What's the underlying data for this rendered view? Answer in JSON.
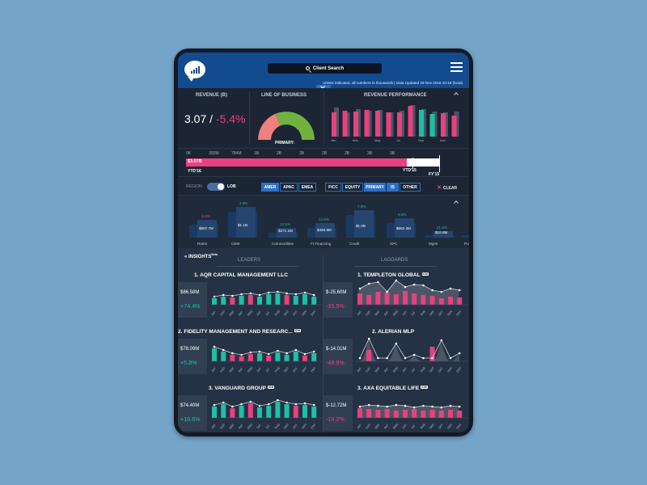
{
  "header": {
    "search_label": "Client Search",
    "note": "Unless indicated, all numbers in thousands | Data Updated 29 Nov 2016 10:18 (local)"
  },
  "kpi": {
    "revenue_title": "REVENUE (B)",
    "revenue_value": "3.07",
    "revenue_sep": " / ",
    "revenue_change": "-5.4%",
    "lob_title": "LINE OF BUSINESS",
    "primary_label": "PRIMARY:",
    "perf_title": "REVENUE PERFORMANCE",
    "perf_months": [
      "Jan",
      "Mar",
      "May",
      "Jul",
      "Sep",
      "Nov"
    ]
  },
  "timeline": {
    "ticks": [
      "0K",
      "392M",
      "784M",
      "1B",
      "2B",
      "2B",
      "2B",
      "2B",
      "3B",
      "3B"
    ],
    "value": "$3.07B",
    "ytd": "YTD'16",
    "ytd15": "YTD'15",
    "fy15": "FY'15",
    "progress": 0.87
  },
  "filters": {
    "region_label": "REGION",
    "lob_label": "LOB",
    "regions": [
      "AMER",
      "APAC",
      "EMEA"
    ],
    "lobs": [
      "FICC",
      "EQUITY",
      "PRIMARY",
      "IS",
      "OTHER"
    ],
    "clear_label": "CLEAR"
  },
  "lob_bars": [
    {
      "name": "Rates",
      "value": "$597.7M",
      "change": "-5.9%"
    },
    {
      "name": "CEM",
      "value": "$1.1B",
      "change": "2.6%"
    },
    {
      "name": "Commodities",
      "value": "$271.1M",
      "change": "12.5%"
    },
    {
      "name": "FI Financing",
      "value": "$460.6M",
      "change": "24.6%"
    },
    {
      "name": "Credit",
      "value": "$1.0B",
      "change": "7.6%"
    },
    {
      "name": "SPC",
      "value": "$662.4M",
      "change": "9.6%"
    },
    {
      "name": "Mgmt",
      "value": "$18.8M",
      "change": "21.8%"
    },
    {
      "name": "Pul",
      "value": "",
      "change": ""
    }
  ],
  "insights": {
    "title": "INSIGHTS",
    "beta": "Beta",
    "leaders_label": "LEADERS",
    "laggards_label": "LAGGARDS",
    "months": [
      "Jan",
      "Feb",
      "Mar",
      "Apr",
      "May",
      "Jun",
      "Jul",
      "Aug",
      "Sep",
      "Oct",
      "Nov",
      "Dec"
    ],
    "leaders": [
      {
        "title": "1. AQR CAPITAL MANAGEMENT LLC",
        "amount": "$86.58M",
        "pct": "+74.4%",
        "badge": ""
      },
      {
        "title": "2. FIDELITY MANAGEMENT AND RESEARC...",
        "amount": "$78.09M",
        "pct": "+5.8%",
        "badge": "ICM"
      },
      {
        "title": "3. VANGUARD GROUP",
        "amount": "$74.40M",
        "pct": "+16.6%",
        "badge": "ICM"
      }
    ],
    "laggards": [
      {
        "title": "1. TEMPLETON GLOBAL",
        "amount": "$-25.60M",
        "pct": "-35.5%",
        "badge": "ICM"
      },
      {
        "title": "2. ALERIAN MLP",
        "amount": "$-14.01M",
        "pct": "-48.9%",
        "badge": ""
      },
      {
        "title": "3. AXA EQUITABLE LIFE",
        "amount": "$-12.72M",
        "pct": "-18.2%",
        "badge": "ICM"
      }
    ]
  },
  "colors": {
    "pink": "#e9407f",
    "teal": "#1fbfa6",
    "green": "#6fb240",
    "salmon": "#f07f80",
    "blue": "#2d6fc4"
  }
}
